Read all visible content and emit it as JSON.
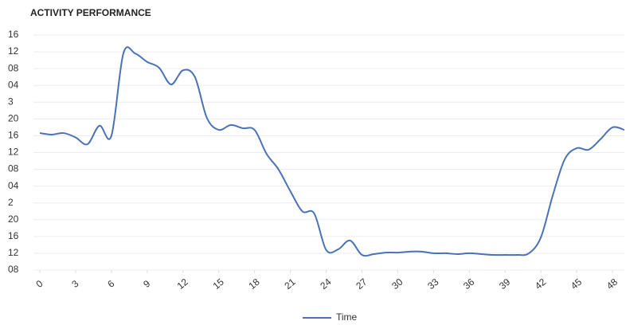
{
  "chart_data": {
    "type": "line",
    "title": "ACTIVITY PERFORMANCE",
    "x": [
      0,
      1,
      2,
      3,
      4,
      5,
      6,
      7,
      8,
      9,
      10,
      11,
      12,
      13,
      14,
      15,
      16,
      17,
      18,
      19,
      20,
      21,
      22,
      23,
      24,
      25,
      26,
      27,
      28,
      29,
      30,
      31,
      32,
      33,
      34,
      35,
      36,
      37,
      38,
      39,
      40,
      41,
      42,
      43,
      44,
      45,
      46,
      47,
      48,
      49
    ],
    "series": [
      {
        "name": "Time",
        "color": "#4a72b8",
        "values": [
          8.16,
          8.07,
          8.16,
          7.9,
          7.5,
          8.6,
          8.0,
          12.9,
          12.9,
          12.4,
          12.05,
          11.06,
          11.9,
          11.5,
          9.07,
          8.35,
          8.64,
          8.45,
          8.35,
          6.93,
          6.0,
          4.7,
          3.5,
          3.37,
          1.2,
          1.23,
          1.76,
          0.9,
          0.95,
          1.04,
          1.04,
          1.1,
          1.1,
          1.0,
          1.0,
          0.95,
          1.0,
          0.95,
          0.9,
          0.9,
          0.9,
          1.0,
          1.95,
          4.46,
          6.6,
          7.26,
          7.17,
          7.8,
          8.5,
          8.35
        ]
      }
    ],
    "xlim": [
      0,
      49
    ],
    "xticks": [
      0,
      3,
      6,
      9,
      12,
      15,
      18,
      21,
      24,
      27,
      30,
      33,
      36,
      39,
      42,
      45,
      48
    ],
    "ylim": [
      0,
      14
    ],
    "yticks": [
      {
        "value": 0,
        "label": "08"
      },
      {
        "value": 1,
        "label": "12"
      },
      {
        "value": 2,
        "label": "16"
      },
      {
        "value": 3,
        "label": "20"
      },
      {
        "value": 4,
        "label": "2"
      },
      {
        "value": 5,
        "label": "04"
      },
      {
        "value": 6,
        "label": "08"
      },
      {
        "value": 7,
        "label": "12"
      },
      {
        "value": 8,
        "label": "16"
      },
      {
        "value": 9,
        "label": "20"
      },
      {
        "value": 10,
        "label": "3"
      },
      {
        "value": 11,
        "label": "04"
      },
      {
        "value": 12,
        "label": "08"
      },
      {
        "value": 13,
        "label": "12"
      },
      {
        "value": 14,
        "label": "16"
      }
    ],
    "grid": true,
    "legend": "bottom"
  }
}
